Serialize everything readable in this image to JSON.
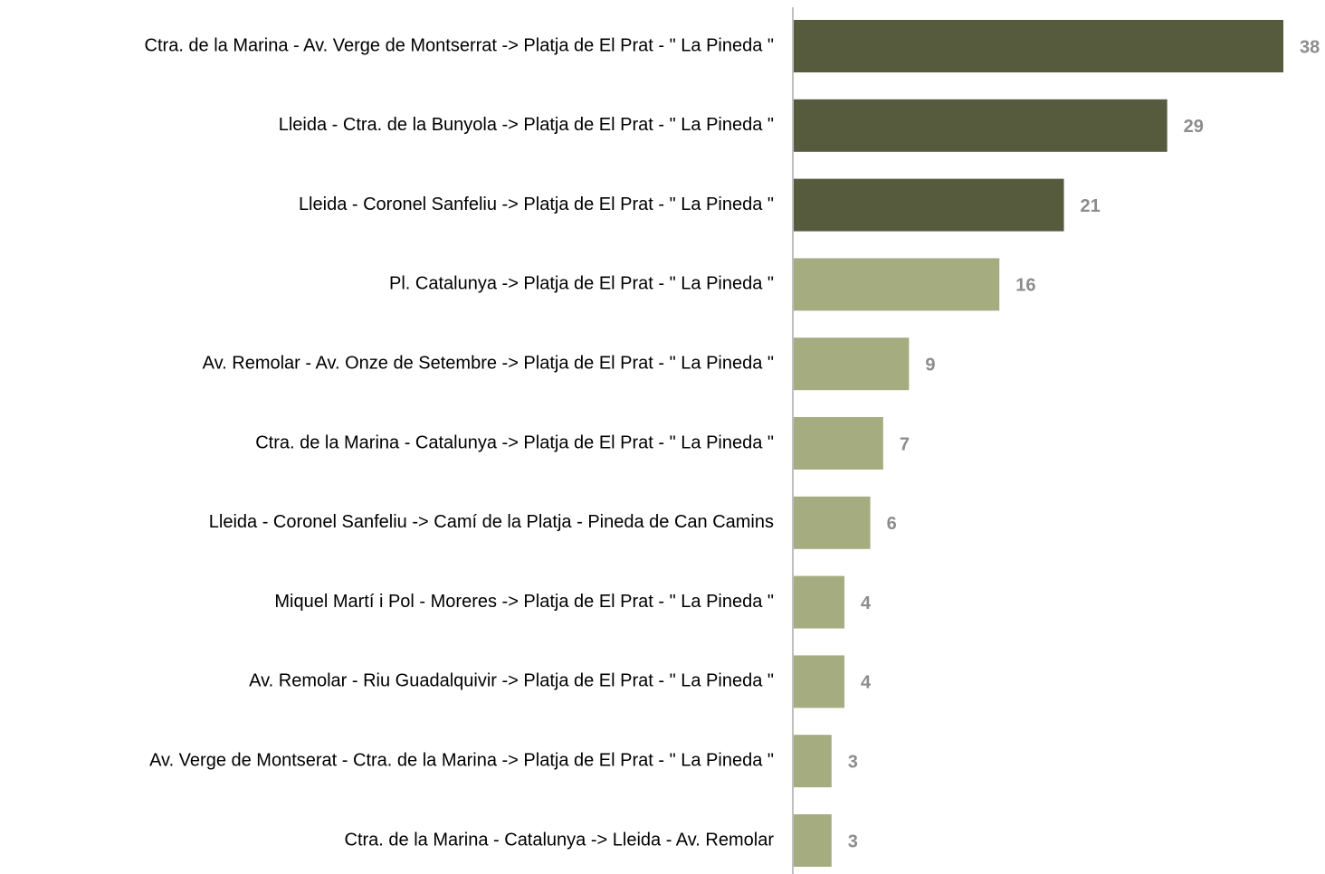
{
  "chart_data": {
    "type": "bar",
    "orientation": "horizontal",
    "categories": [
      "Ctra. de la Marina - Av. Verge de Montserrat -> Platja de El Prat - \" La Pineda \"",
      "Lleida - Ctra. de la Bunyola -> Platja de El Prat - \" La Pineda \"",
      "Lleida - Coronel Sanfeliu -> Platja de El Prat - \" La Pineda \"",
      "Pl. Catalunya -> Platja de El Prat - \" La Pineda \"",
      "Av. Remolar - Av. Onze de Setembre -> Platja de El Prat - \" La Pineda \"",
      "Ctra. de la Marina - Catalunya -> Platja de El Prat - \" La Pineda \"",
      "Lleida - Coronel Sanfeliu -> Camí de la Platja - Pineda de Can Camins",
      "Miquel Martí i Pol - Moreres -> Platja de El Prat - \" La Pineda \"",
      "Av. Remolar - Riu Guadalquivir -> Platja de El Prat - \" La Pineda \"",
      "Av. Verge de Montserat - Ctra. de la Marina -> Platja de El Prat - \" La Pineda \"",
      "Ctra. de la Marina - Catalunya -> Lleida - Av. Remolar"
    ],
    "values": [
      38,
      29,
      21,
      16,
      9,
      7,
      6,
      4,
      4,
      3,
      3
    ],
    "colors": [
      "#555b3c",
      "#555b3c",
      "#555b3c",
      "#a5ac80",
      "#a5ac80",
      "#a5ac80",
      "#a5ac80",
      "#a5ac80",
      "#a5ac80",
      "#a5ac80",
      "#a5ac80"
    ]
  }
}
